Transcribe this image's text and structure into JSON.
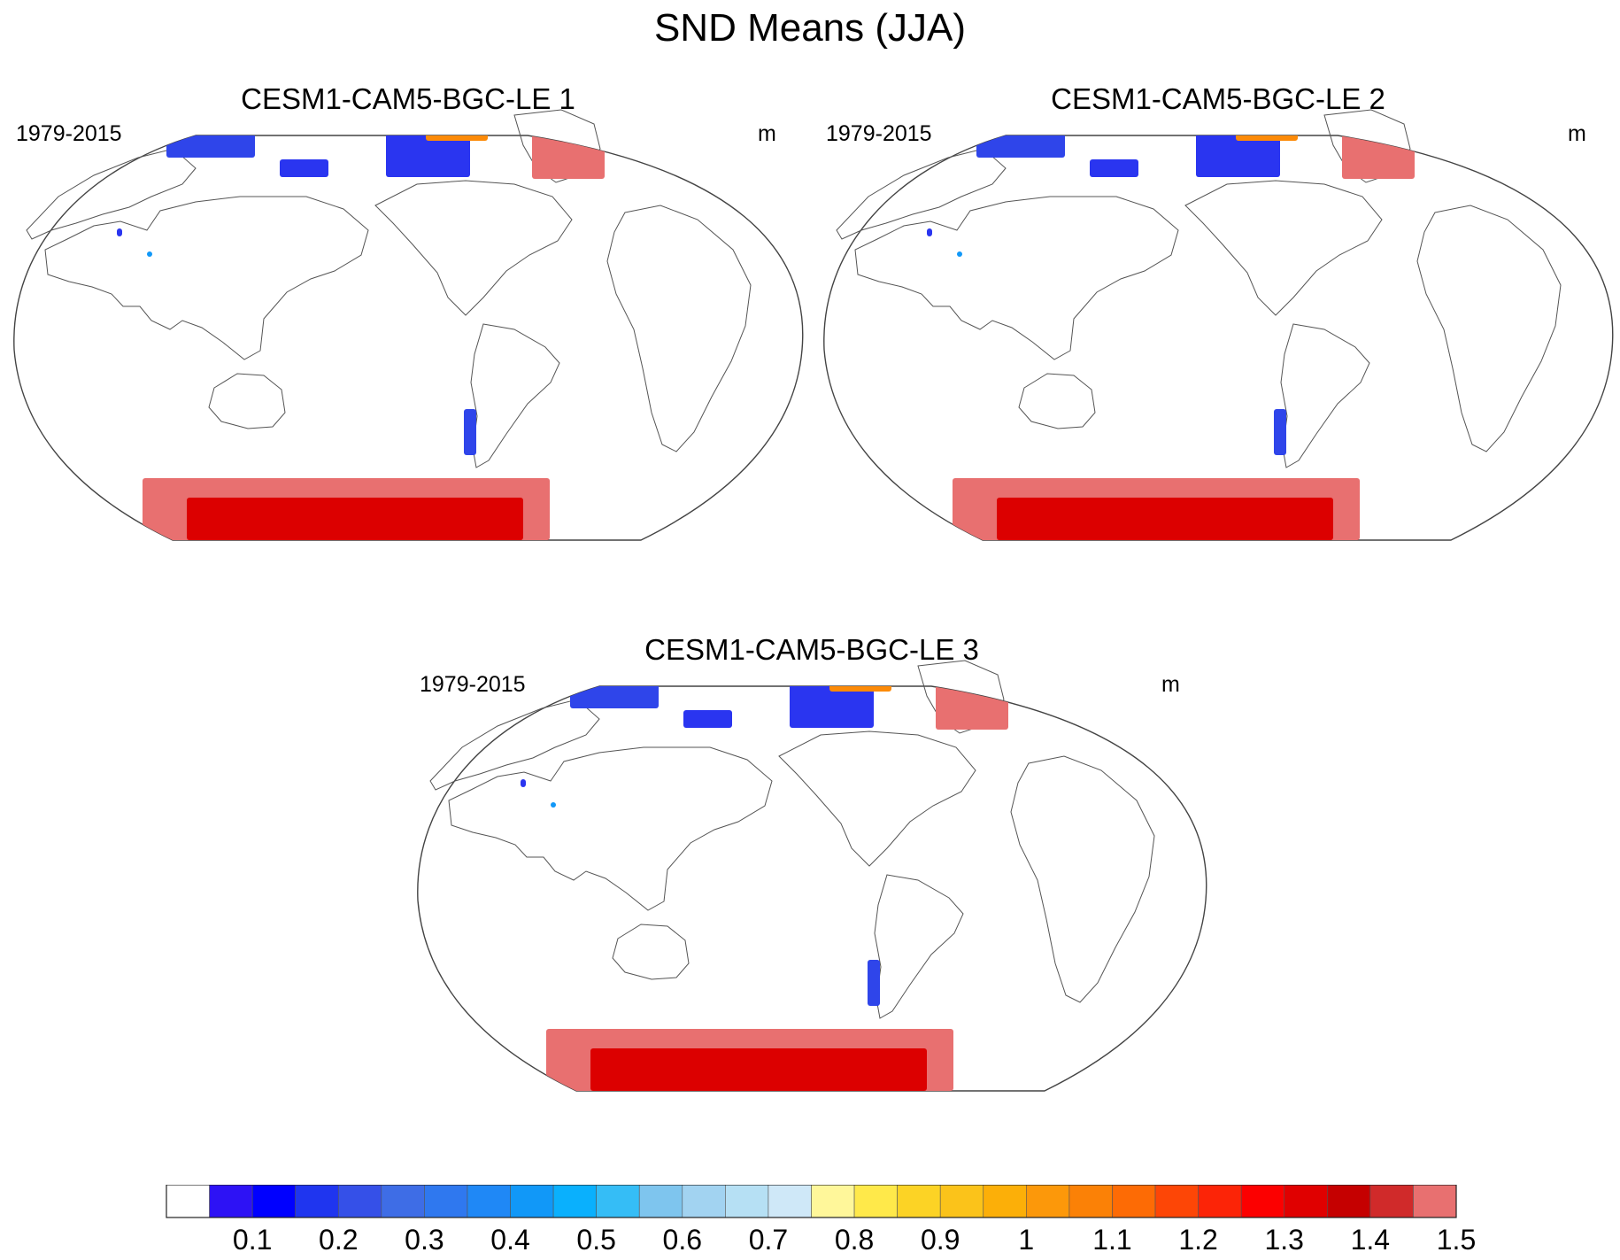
{
  "title": "SND Means (JJA)",
  "panels": [
    {
      "title": "CESM1-CAM5-BGC-LE 1",
      "period": "1979-2015",
      "units": "m"
    },
    {
      "title": "CESM1-CAM5-BGC-LE 2",
      "period": "1979-2015",
      "units": "m"
    },
    {
      "title": "CESM1-CAM5-BGC-LE 3",
      "period": "1979-2015",
      "units": "m"
    }
  ],
  "colorbar": {
    "labels": [
      "0.1",
      "0.2",
      "0.3",
      "0.4",
      "0.5",
      "0.6",
      "0.7",
      "0.8",
      "0.9",
      "1",
      "1.1",
      "1.2",
      "1.3",
      "1.4",
      "1.5"
    ],
    "colors": [
      "#ffffff",
      "#2d12f5",
      "#0000ff",
      "#1f35ef",
      "#3550e8",
      "#3e6de6",
      "#2f78ef",
      "#1f88f6",
      "#1198f8",
      "#0ab0fd",
      "#35bdf6",
      "#7ec5ee",
      "#a2d3f1",
      "#b6e0f4",
      "#cfe8f8",
      "#fff79a",
      "#ffe94a",
      "#fcd325",
      "#fbc31a",
      "#fcaf08",
      "#fc980a",
      "#fb8106",
      "#fd6b05",
      "#fd4606",
      "#fc2407",
      "#fc0000",
      "#e00000",
      "#c50000",
      "#d02a2a",
      "#e87070"
    ]
  }
}
